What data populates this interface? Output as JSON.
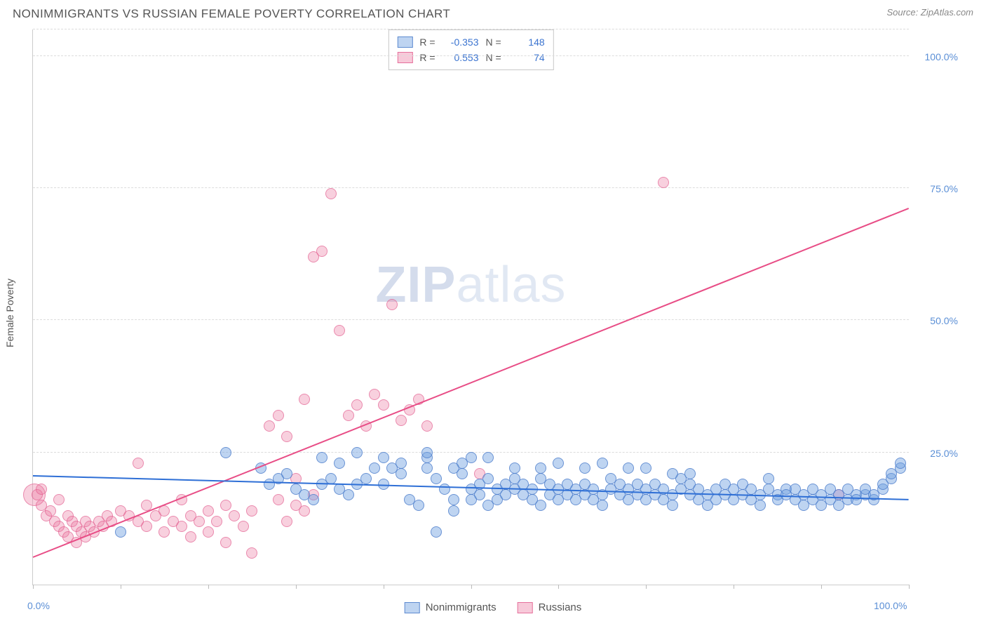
{
  "header": {
    "title": "NONIMMIGRANTS VS RUSSIAN FEMALE POVERTY CORRELATION CHART",
    "source": "Source: ZipAtlas.com"
  },
  "watermark": {
    "zip": "ZIP",
    "atlas": "atlas"
  },
  "chart": {
    "type": "scatter",
    "xlim": [
      0,
      100
    ],
    "ylim": [
      0,
      105
    ],
    "y_label": "Female Poverty",
    "y_gridlines": [
      25,
      50,
      75,
      100,
      105
    ],
    "y_tick_labels": [
      {
        "v": 25,
        "t": "25.0%"
      },
      {
        "v": 50,
        "t": "50.0%"
      },
      {
        "v": 75,
        "t": "75.0%"
      },
      {
        "v": 100,
        "t": "100.0%"
      }
    ],
    "x_ticks": [
      0,
      10,
      20,
      30,
      40,
      50,
      60,
      70,
      80,
      90,
      100
    ],
    "x_tick_labels": [
      {
        "v": 0,
        "t": "0.0%"
      },
      {
        "v": 100,
        "t": "100.0%"
      }
    ],
    "background_color": "#ffffff",
    "grid_color": "#dcdcdc",
    "axis_color": "#cccccc",
    "tick_label_color": "#5b8fd6",
    "label_fontsize": 14,
    "point_radius": 8,
    "series": {
      "nonimmigrants": {
        "label": "Nonimmigrants",
        "color_fill": "rgba(110,160,225,0.45)",
        "color_stroke": "rgba(70,120,200,0.7)",
        "R": "-0.353",
        "N": "148",
        "trend": {
          "x1": 0,
          "y1": 20.5,
          "x2": 100,
          "y2": 16.0,
          "color": "#2e6fd6"
        },
        "points": [
          [
            10,
            10
          ],
          [
            22,
            25
          ],
          [
            26,
            22
          ],
          [
            27,
            19
          ],
          [
            28,
            20
          ],
          [
            29,
            21
          ],
          [
            30,
            18
          ],
          [
            31,
            17
          ],
          [
            32,
            16
          ],
          [
            33,
            19
          ],
          [
            34,
            20
          ],
          [
            35,
            18
          ],
          [
            36,
            17
          ],
          [
            37,
            19
          ],
          [
            38,
            20
          ],
          [
            39,
            22
          ],
          [
            40,
            19
          ],
          [
            41,
            22
          ],
          [
            42,
            21
          ],
          [
            43,
            16
          ],
          [
            44,
            15
          ],
          [
            45,
            22
          ],
          [
            45,
            24
          ],
          [
            46,
            20
          ],
          [
            47,
            18
          ],
          [
            48,
            16
          ],
          [
            48,
            14
          ],
          [
            49,
            21
          ],
          [
            49,
            23
          ],
          [
            50,
            18
          ],
          [
            50,
            16
          ],
          [
            51,
            17
          ],
          [
            51,
            19
          ],
          [
            52,
            20
          ],
          [
            52,
            15
          ],
          [
            53,
            16
          ],
          [
            53,
            18
          ],
          [
            54,
            19
          ],
          [
            54,
            17
          ],
          [
            55,
            18
          ],
          [
            55,
            20
          ],
          [
            56,
            19
          ],
          [
            56,
            17
          ],
          [
            57,
            16
          ],
          [
            57,
            18
          ],
          [
            58,
            20
          ],
          [
            58,
            15
          ],
          [
            59,
            19
          ],
          [
            59,
            17
          ],
          [
            60,
            18
          ],
          [
            46,
            10
          ],
          [
            60,
            16
          ],
          [
            61,
            17
          ],
          [
            61,
            19
          ],
          [
            62,
            18
          ],
          [
            62,
            16
          ],
          [
            63,
            17
          ],
          [
            63,
            19
          ],
          [
            64,
            18
          ],
          [
            64,
            16
          ],
          [
            65,
            17
          ],
          [
            65,
            15
          ],
          [
            66,
            18
          ],
          [
            66,
            20
          ],
          [
            67,
            19
          ],
          [
            67,
            17
          ],
          [
            68,
            16
          ],
          [
            68,
            18
          ],
          [
            69,
            17
          ],
          [
            69,
            19
          ],
          [
            70,
            18
          ],
          [
            70,
            16
          ],
          [
            71,
            17
          ],
          [
            71,
            19
          ],
          [
            72,
            18
          ],
          [
            72,
            16
          ],
          [
            73,
            17
          ],
          [
            73,
            15
          ],
          [
            74,
            18
          ],
          [
            74,
            20
          ],
          [
            75,
            17
          ],
          [
            75,
            19
          ],
          [
            76,
            18
          ],
          [
            76,
            16
          ],
          [
            77,
            17
          ],
          [
            77,
            15
          ],
          [
            78,
            18
          ],
          [
            78,
            16
          ],
          [
            79,
            17
          ],
          [
            79,
            19
          ],
          [
            80,
            18
          ],
          [
            80,
            16
          ],
          [
            81,
            17
          ],
          [
            81,
            19
          ],
          [
            82,
            18
          ],
          [
            82,
            16
          ],
          [
            83,
            17
          ],
          [
            83,
            15
          ],
          [
            84,
            18
          ],
          [
            84,
            20
          ],
          [
            85,
            17
          ],
          [
            85,
            16
          ],
          [
            86,
            18
          ],
          [
            86,
            17
          ],
          [
            87,
            16
          ],
          [
            87,
            18
          ],
          [
            88,
            17
          ],
          [
            88,
            15
          ],
          [
            89,
            18
          ],
          [
            89,
            16
          ],
          [
            90,
            17
          ],
          [
            90,
            15
          ],
          [
            91,
            16
          ],
          [
            91,
            18
          ],
          [
            92,
            17
          ],
          [
            92,
            15
          ],
          [
            93,
            16
          ],
          [
            93,
            18
          ],
          [
            94,
            17
          ],
          [
            94,
            16
          ],
          [
            95,
            17
          ],
          [
            95,
            18
          ],
          [
            96,
            16
          ],
          [
            96,
            17
          ],
          [
            97,
            18
          ],
          [
            97,
            19
          ],
          [
            98,
            20
          ],
          [
            98,
            21
          ],
          [
            99,
            22
          ],
          [
            99,
            23
          ],
          [
            33,
            24
          ],
          [
            35,
            23
          ],
          [
            37,
            25
          ],
          [
            40,
            24
          ],
          [
            42,
            23
          ],
          [
            45,
            25
          ],
          [
            48,
            22
          ],
          [
            50,
            24
          ],
          [
            52,
            24
          ],
          [
            55,
            22
          ],
          [
            58,
            22
          ],
          [
            60,
            23
          ],
          [
            63,
            22
          ],
          [
            65,
            23
          ],
          [
            68,
            22
          ],
          [
            70,
            22
          ],
          [
            73,
            21
          ],
          [
            75,
            21
          ]
        ]
      },
      "russians": {
        "label": "Russians",
        "color_fill": "rgba(235,120,160,0.35)",
        "color_stroke": "rgba(225,90,140,0.6)",
        "R": "0.553",
        "N": "74",
        "trend": {
          "x1": 0,
          "y1": 5.0,
          "x2": 100,
          "y2": 71.0,
          "color": "#e84d86"
        },
        "points": [
          [
            0.5,
            17
          ],
          [
            1,
            15
          ],
          [
            1.5,
            13
          ],
          [
            2,
            14
          ],
          [
            2.5,
            12
          ],
          [
            3,
            11
          ],
          [
            3,
            16
          ],
          [
            3.5,
            10
          ],
          [
            4,
            13
          ],
          [
            4,
            9
          ],
          [
            4.5,
            12
          ],
          [
            5,
            11
          ],
          [
            5,
            8
          ],
          [
            5.5,
            10
          ],
          [
            6,
            9
          ],
          [
            6,
            12
          ],
          [
            6.5,
            11
          ],
          [
            7,
            10
          ],
          [
            7.5,
            12
          ],
          [
            8,
            11
          ],
          [
            8.5,
            13
          ],
          [
            9,
            12
          ],
          [
            10,
            14
          ],
          [
            11,
            13
          ],
          [
            12,
            12
          ],
          [
            12,
            23
          ],
          [
            13,
            15
          ],
          [
            13,
            11
          ],
          [
            14,
            13
          ],
          [
            15,
            10
          ],
          [
            15,
            14
          ],
          [
            16,
            12
          ],
          [
            17,
            11
          ],
          [
            17,
            16
          ],
          [
            18,
            13
          ],
          [
            18,
            9
          ],
          [
            19,
            12
          ],
          [
            20,
            14
          ],
          [
            20,
            10
          ],
          [
            21,
            12
          ],
          [
            22,
            15
          ],
          [
            22,
            8
          ],
          [
            23,
            13
          ],
          [
            24,
            11
          ],
          [
            25,
            14
          ],
          [
            25,
            6
          ],
          [
            27,
            30
          ],
          [
            28,
            16
          ],
          [
            29,
            12
          ],
          [
            28,
            32
          ],
          [
            29,
            28
          ],
          [
            30,
            20
          ],
          [
            30,
            15
          ],
          [
            31,
            14
          ],
          [
            31,
            35
          ],
          [
            32,
            17
          ],
          [
            32,
            62
          ],
          [
            33,
            63
          ],
          [
            34,
            74
          ],
          [
            35,
            48
          ],
          [
            36,
            32
          ],
          [
            37,
            34
          ],
          [
            38,
            30
          ],
          [
            39,
            36
          ],
          [
            40,
            34
          ],
          [
            41,
            53
          ],
          [
            42,
            31
          ],
          [
            43,
            33
          ],
          [
            44,
            35
          ],
          [
            45,
            30
          ],
          [
            51,
            21
          ],
          [
            72,
            76
          ],
          [
            92,
            17
          ],
          [
            1,
            18
          ]
        ],
        "large_points": [
          [
            0.2,
            17,
            16
          ]
        ]
      }
    }
  },
  "stats_box": {
    "rows": [
      {
        "swatch": "blue",
        "R_label": "R =",
        "R": "-0.353",
        "N_label": "N =",
        "N": "148"
      },
      {
        "swatch": "pink",
        "R_label": "R =",
        "R": "0.553",
        "N_label": "N =",
        "N": "74"
      }
    ]
  },
  "legend": [
    {
      "swatch": "blue",
      "label": "Nonimmigrants"
    },
    {
      "swatch": "pink",
      "label": "Russians"
    }
  ]
}
